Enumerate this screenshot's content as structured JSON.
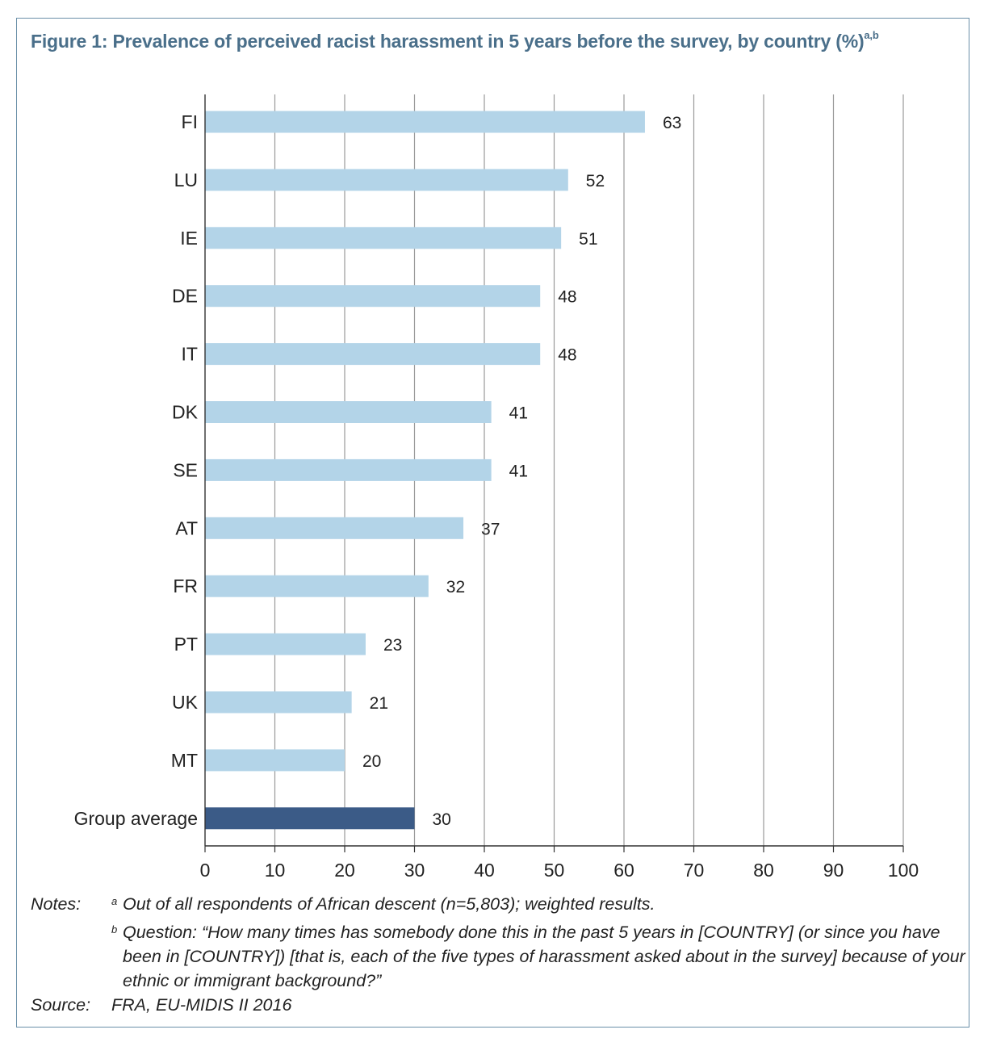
{
  "figure": {
    "title": "Figure 1:  Prevalence of perceived racist harassment in 5 years before the survey, by country (%)",
    "title_sup": "a,b"
  },
  "chart_data": {
    "type": "bar",
    "orientation": "horizontal",
    "categories": [
      "FI",
      "LU",
      "IE",
      "DE",
      "IT",
      "DK",
      "SE",
      "AT",
      "FR",
      "PT",
      "UK",
      "MT",
      "Group average"
    ],
    "values": [
      63,
      52,
      51,
      48,
      48,
      41,
      41,
      37,
      32,
      23,
      21,
      20,
      30
    ],
    "xlim": [
      0,
      100
    ],
    "xticks": [
      0,
      10,
      20,
      30,
      40,
      50,
      60,
      70,
      80,
      90,
      100
    ],
    "grid": true,
    "colors": {
      "bar": "#b3d4e8",
      "average_bar": "#3b5b87",
      "grid": "#9a9a9a"
    },
    "highlight_category": "Group average"
  },
  "notes": {
    "label": "Notes:",
    "a_mark": "a",
    "a_text": "Out of all respondents of African descent (n=5,803); weighted results.",
    "b_mark": "b",
    "b_text": "Question: “How many times has somebody done this in the past 5 years in [COUNTRY] (or since you have been in [COUNTRY]) [that is, each of the five types of harassment asked about in the survey] because of your ethnic or immigrant background?”"
  },
  "source": {
    "label": "Source:",
    "text": "FRA, EU-MIDIS II 2016"
  }
}
